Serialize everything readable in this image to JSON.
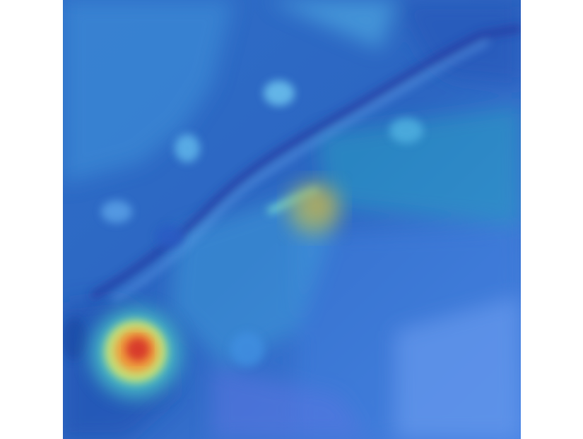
{
  "chart_data": {
    "type": "heatmap",
    "title": "",
    "xlabel": "",
    "ylabel": "",
    "axes_visible": false,
    "colorbar_visible": false,
    "colormap": [
      "#1f3b8f",
      "#2457b8",
      "#3a7bd5",
      "#4aa3e0",
      "#56c9d8",
      "#7fe0b0",
      "#e3d94b",
      "#e8883a",
      "#d8342a"
    ],
    "regions": [
      {
        "label": "hotspot",
        "x": 0.17,
        "y": 0.19,
        "value": 1.0
      },
      {
        "label": "warm-spot",
        "x": 0.55,
        "y": 0.53,
        "value": 0.45
      },
      {
        "label": "ridge",
        "x": 0.4,
        "y": 0.55,
        "value": 0.35
      },
      {
        "label": "upper-left-field",
        "x": 0.25,
        "y": 0.75,
        "value": 0.28
      },
      {
        "label": "lower-right-field",
        "x": 0.8,
        "y": 0.25,
        "value": 0.22
      },
      {
        "label": "top-right-field",
        "x": 0.85,
        "y": 0.88,
        "value": 0.3
      }
    ]
  }
}
